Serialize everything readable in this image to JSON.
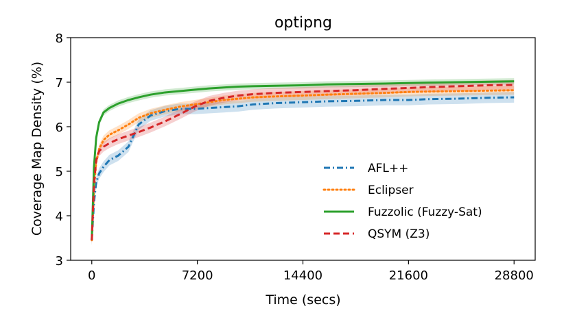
{
  "chart_data": {
    "type": "line",
    "title": "optipng",
    "xlabel": "Time (secs)",
    "ylabel": "Coverage Map Density (%)",
    "xlim": [
      -1440,
      30240
    ],
    "ylim": [
      3,
      8
    ],
    "xticks": [
      0,
      7200,
      14400,
      21600,
      28800
    ],
    "yticks": [
      3,
      4,
      5,
      6,
      7,
      8
    ],
    "xtick_labels": [
      "0",
      "7200",
      "14400",
      "21600",
      "28800"
    ],
    "ytick_labels": [
      "3",
      "4",
      "5",
      "6",
      "7",
      "8"
    ],
    "legend_position": "lower-right",
    "series": [
      {
        "name": "AFL++",
        "color": "#1f77b4",
        "dash": "dashdot",
        "x": [
          0,
          150,
          300,
          500,
          800,
          1200,
          1800,
          2500,
          3200,
          4000,
          5000,
          6000,
          7000,
          8000,
          9000,
          10000,
          11000,
          12500,
          14400,
          16000,
          18000,
          20000,
          21600,
          23000,
          25000,
          27000,
          28800
        ],
        "y": [
          3.45,
          4.3,
          4.75,
          4.95,
          5.1,
          5.25,
          5.35,
          5.55,
          6.05,
          6.25,
          6.35,
          6.4,
          6.4,
          6.42,
          6.44,
          6.46,
          6.5,
          6.53,
          6.55,
          6.57,
          6.58,
          6.6,
          6.6,
          6.62,
          6.63,
          6.65,
          6.66
        ],
        "band": 0.12
      },
      {
        "name": "Eclipser",
        "color": "#ff7f0e",
        "dash": "dotted",
        "x": [
          0,
          150,
          300,
          500,
          800,
          1200,
          1800,
          2500,
          3200,
          4000,
          5000,
          6000,
          7000,
          8000,
          9000,
          10000,
          11000,
          12500,
          14400,
          16000,
          18000,
          20000,
          21600,
          23000,
          25000,
          27000,
          28800
        ],
        "y": [
          3.45,
          4.6,
          5.2,
          5.5,
          5.7,
          5.82,
          5.92,
          6.05,
          6.2,
          6.3,
          6.38,
          6.45,
          6.5,
          6.55,
          6.6,
          6.63,
          6.66,
          6.68,
          6.7,
          6.72,
          6.74,
          6.76,
          6.78,
          6.79,
          6.8,
          6.81,
          6.82
        ],
        "band": 0.1
      },
      {
        "name": "Fuzzolic (Fuzzy-Sat)",
        "color": "#2ca02c",
        "dash": "solid",
        "x": [
          0,
          150,
          300,
          500,
          800,
          1200,
          1800,
          2500,
          3200,
          4000,
          5000,
          6000,
          7000,
          8000,
          9000,
          10000,
          11000,
          12500,
          14400,
          16000,
          18000,
          20000,
          21600,
          23000,
          25000,
          27000,
          28800
        ],
        "y": [
          3.45,
          5.1,
          5.75,
          6.1,
          6.32,
          6.42,
          6.52,
          6.6,
          6.66,
          6.72,
          6.77,
          6.8,
          6.83,
          6.86,
          6.88,
          6.9,
          6.91,
          6.92,
          6.93,
          6.95,
          6.96,
          6.97,
          6.98,
          6.99,
          7.0,
          7.01,
          7.02
        ],
        "band": 0.07
      },
      {
        "name": "QSYM (Z3)",
        "color": "#d62728",
        "dash": "dashed",
        "x": [
          0,
          150,
          300,
          500,
          800,
          1200,
          1800,
          2500,
          3200,
          4000,
          5000,
          6000,
          7000,
          8000,
          9000,
          10000,
          11000,
          12500,
          14400,
          16000,
          18000,
          20000,
          21600,
          23000,
          25000,
          27000,
          28800
        ],
        "y": [
          3.45,
          4.7,
          5.25,
          5.45,
          5.55,
          5.63,
          5.72,
          5.8,
          5.88,
          5.98,
          6.12,
          6.28,
          6.45,
          6.58,
          6.65,
          6.7,
          6.73,
          6.76,
          6.78,
          6.8,
          6.82,
          6.85,
          6.87,
          6.89,
          6.91,
          6.93,
          6.94
        ],
        "band": 0.11
      }
    ]
  }
}
